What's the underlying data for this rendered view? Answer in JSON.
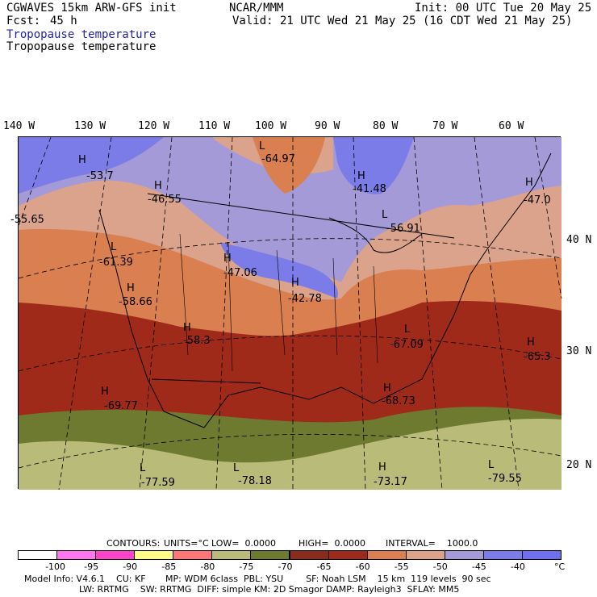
{
  "header": {
    "model_title": "CGWAVES 15km ARW-GFS init",
    "fcst_label": "Fcst:",
    "fcst_value": "45 h",
    "org": "NCAR/MMM",
    "init": "Init: 00 UTC Tue 20 May 25",
    "valid": "Valid: 21 UTC Wed 21 May 25 (16 CDT Wed 21 May 25)",
    "field_shaded": "Tropopause temperature",
    "field_contour": "Tropopause temperature"
  },
  "axes": {
    "longitudes": [
      "140 W",
      "130 W",
      "120 W",
      "110 W",
      "100 W",
      "90 W",
      "80 W",
      "70 W",
      "60 W"
    ],
    "latitudes": [
      "40 N",
      "30 N",
      "20 N"
    ]
  },
  "centers": [
    {
      "type": "L",
      "value": "-64.97"
    },
    {
      "type": "H",
      "value": "-41.48"
    },
    {
      "type": "H",
      "value": "-53.7"
    },
    {
      "type": "H",
      "value": "-46.55"
    },
    {
      "type": "H",
      "value": "-47.0"
    },
    {
      "type": "",
      "value": "-55.65"
    },
    {
      "type": "L",
      "value": "-56.91"
    },
    {
      "type": "L",
      "value": "-61.39"
    },
    {
      "type": "H",
      "value": "-47.06"
    },
    {
      "type": "H",
      "value": "-58.66"
    },
    {
      "type": "H",
      "value": "-42.78"
    },
    {
      "type": "H",
      "value": "-58.3"
    },
    {
      "type": "L",
      "value": "-67.09"
    },
    {
      "type": "H",
      "value": "-65.3"
    },
    {
      "type": "H",
      "value": "-69.77"
    },
    {
      "type": "H",
      "value": "-68.73"
    },
    {
      "type": "L",
      "value": "-77.59"
    },
    {
      "type": "L",
      "value": "-78.18"
    },
    {
      "type": "H",
      "value": "-73.17"
    },
    {
      "type": "L",
      "value": "-79.55"
    }
  ],
  "contours_line": {
    "contours": "CONTOURS:",
    "units": "UNITS=°C",
    "low": "LOW=  0.0000",
    "high": "HIGH=  0.0000",
    "interval": "INTERVAL=    1000.0"
  },
  "legend": {
    "colors": [
      "#ffffff",
      "#ff77ee",
      "#ff44cc",
      "#ffff88",
      "#ff7777",
      "#b8bc78",
      "#6e7a30",
      "#8a2c1c",
      "#a02a1a",
      "#d97f50",
      "#dba38c",
      "#a49ad8",
      "#7c7ce8",
      "#6f6ff0"
    ],
    "ticks": [
      "-100",
      "-95",
      "-90",
      "-85",
      "-80",
      "-75",
      "-70",
      "-65",
      "-60",
      "-55",
      "-50",
      "-45",
      "-40"
    ],
    "unit": "°C"
  },
  "model_info": {
    "line1": "Model Info: V4.6.1    CU: KF       MP: WDM 6class  PBL: YSU        SF: Noah LSM    15 km  119 levels  90 sec",
    "line2": "LW: RRTMG    SW: RRTMG  DIFF: simple KM: 2D Smagor DAMP: Rayleigh3  SFLAY: MM5"
  }
}
